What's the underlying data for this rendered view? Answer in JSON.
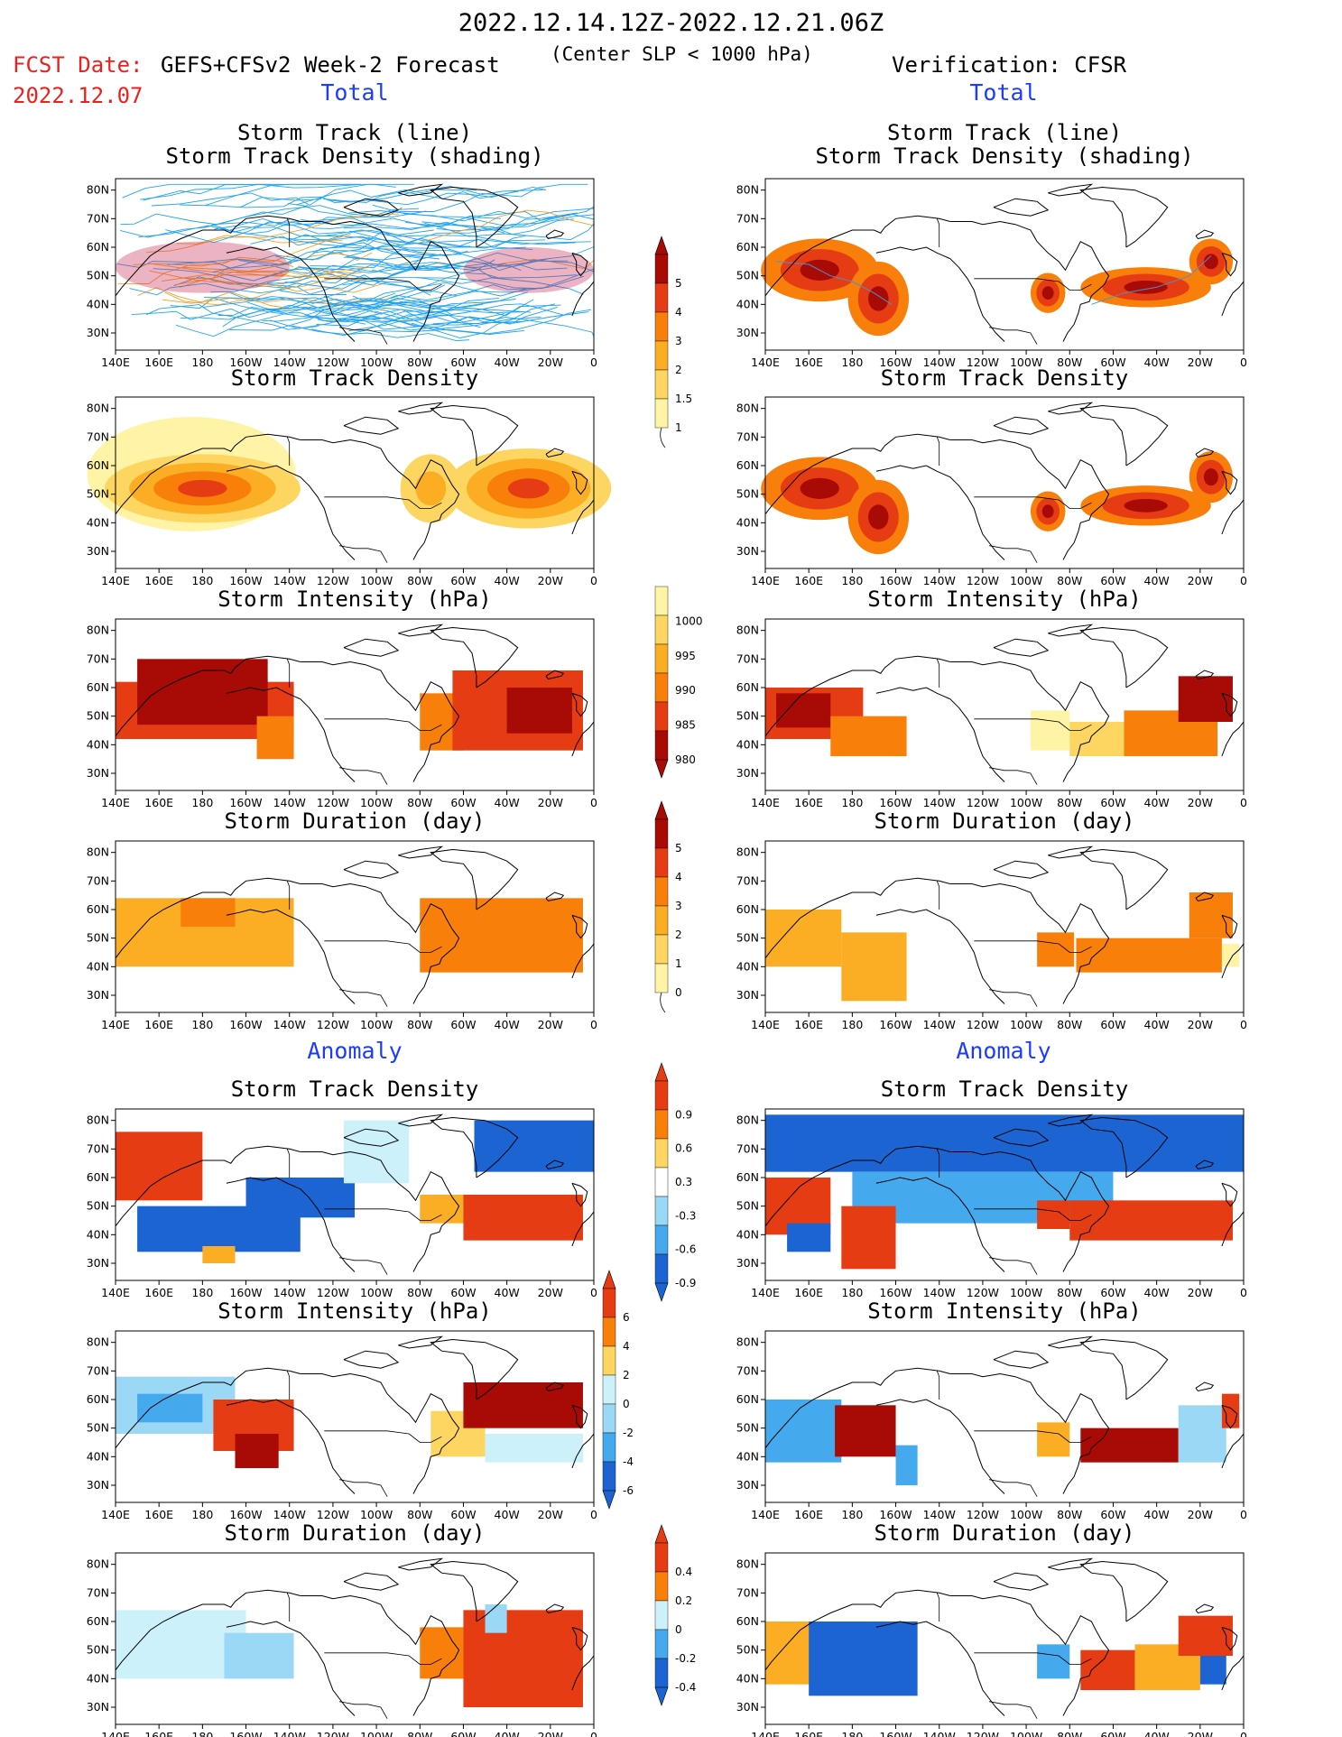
{
  "header": {
    "title": "2022.12.14.12Z-2022.12.21.06Z",
    "fcst_date_label": "FCST Date:",
    "fcst_date_value": "2022.12.07",
    "model_label": "GEFS+CFSv2 Week-2 Forecast",
    "center_slp": "(Center SLP < 1000 hPa)",
    "verification_label": "Verification: CFSR"
  },
  "sections": {
    "total": "Total",
    "anomaly": "Anomaly"
  },
  "panel_titles": {
    "track_line": "Storm Track (line)",
    "track_shading": "Storm Track Density (shading)",
    "density": "Storm Track Density",
    "intensity": "Storm Intensity (hPa)",
    "duration": "Storm Duration (day)"
  },
  "axes": {
    "lon_labels": [
      "140E",
      "160E",
      "180",
      "160W",
      "140W",
      "120W",
      "100W",
      "80W",
      "60W",
      "40W",
      "20W",
      "0"
    ],
    "lat_labels": [
      "80N",
      "70N",
      "60N",
      "50N",
      "40N",
      "30N"
    ]
  },
  "colorbars": {
    "density_total": [
      "1",
      "1.5",
      "2",
      "3",
      "4",
      "5"
    ],
    "intensity_total": [
      "1000",
      "995",
      "990",
      "985",
      "980"
    ],
    "duration_total": [
      "0",
      "1",
      "2",
      "3",
      "4",
      "5"
    ],
    "density_anomaly": [
      "0.9",
      "0.6",
      "0.3",
      "-0.3",
      "-0.6",
      "-0.9"
    ],
    "intensity_anomaly": [
      "6",
      "4",
      "2",
      "0",
      "-2",
      "-4",
      "-6"
    ],
    "duration_anomaly": [
      "0.4",
      "0.2",
      "0",
      "-0.2",
      "-0.4"
    ]
  },
  "palette": {
    "warm": [
      "#fff3a6",
      "#fcd661",
      "#fbae24",
      "#f77f0a",
      "#e53c13",
      "#a80b05"
    ],
    "cool": [
      "#cdf1fb",
      "#9ad8f6",
      "#45a9ee",
      "#1b64d2"
    ],
    "track_blue": "#21a3f0",
    "title_red": "#e8231f",
    "section_blue": "#1b3cff"
  }
}
